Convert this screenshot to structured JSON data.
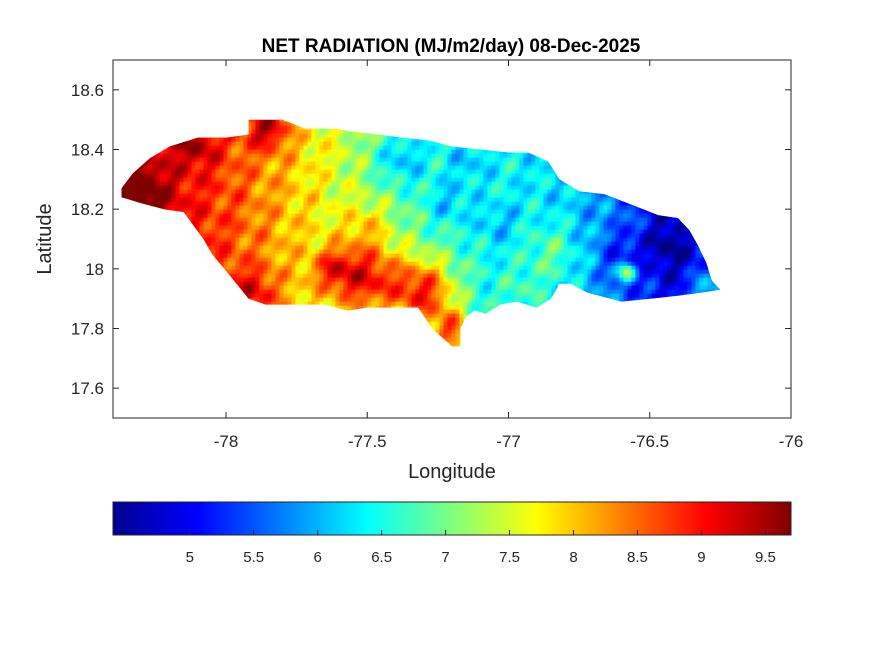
{
  "chart_data": {
    "type": "heatmap",
    "title": "NET RADIATION (MJ/m2/day) 08-Dec-2025",
    "xlabel": "Longitude",
    "ylabel": "Latitude",
    "xlim": [
      -78.4,
      -76
    ],
    "ylim": [
      17.5,
      18.7
    ],
    "x_ticks": [
      -78,
      -77.5,
      -77,
      -76.5,
      -76
    ],
    "y_ticks": [
      17.6,
      17.8,
      18,
      18.2,
      18.4,
      18.6
    ],
    "x_tick_labels": [
      "-78",
      "-77.5",
      "-77",
      "-76.5",
      "-76"
    ],
    "y_tick_labels": [
      "17.6",
      "17.8",
      "18",
      "18.2",
      "18.4",
      "18.6"
    ],
    "colormap": "jet",
    "colorbar": {
      "range": [
        4.4,
        9.7
      ],
      "ticks": [
        5,
        5.5,
        6,
        6.5,
        7,
        7.5,
        8,
        8.5,
        9,
        9.5
      ],
      "tick_labels": [
        "5",
        "5.5",
        "6",
        "6.5",
        "7",
        "7.5",
        "8",
        "8.5",
        "9",
        "9.5"
      ]
    },
    "region": "Jamaica",
    "outline": [
      [
        -78.37,
        18.27
      ],
      [
        -78.33,
        18.32
      ],
      [
        -78.27,
        18.37
      ],
      [
        -78.2,
        18.41
      ],
      [
        -78.1,
        18.44
      ],
      [
        -78.0,
        18.44
      ],
      [
        -77.92,
        18.45
      ],
      [
        -77.92,
        18.5
      ],
      [
        -77.8,
        18.5
      ],
      [
        -77.72,
        18.47
      ],
      [
        -77.62,
        18.47
      ],
      [
        -77.55,
        18.46
      ],
      [
        -77.46,
        18.45
      ],
      [
        -77.38,
        18.44
      ],
      [
        -77.28,
        18.43
      ],
      [
        -77.2,
        18.41
      ],
      [
        -77.1,
        18.4
      ],
      [
        -77.0,
        18.39
      ],
      [
        -76.93,
        18.39
      ],
      [
        -76.86,
        18.36
      ],
      [
        -76.82,
        18.3
      ],
      [
        -76.75,
        18.26
      ],
      [
        -76.66,
        18.25
      ],
      [
        -76.55,
        18.21
      ],
      [
        -76.47,
        18.18
      ],
      [
        -76.4,
        18.17
      ],
      [
        -76.36,
        18.13
      ],
      [
        -76.33,
        18.08
      ],
      [
        -76.3,
        18.02
      ],
      [
        -76.28,
        17.96
      ],
      [
        -76.25,
        17.93
      ],
      [
        -76.32,
        17.92
      ],
      [
        -76.4,
        17.91
      ],
      [
        -76.5,
        17.9
      ],
      [
        -76.6,
        17.89
      ],
      [
        -76.72,
        17.92
      ],
      [
        -76.78,
        17.95
      ],
      [
        -76.82,
        17.95
      ],
      [
        -76.85,
        17.9
      ],
      [
        -76.9,
        17.87
      ],
      [
        -76.97,
        17.89
      ],
      [
        -77.03,
        17.88
      ],
      [
        -77.08,
        17.85
      ],
      [
        -77.12,
        17.86
      ],
      [
        -77.15,
        17.84
      ],
      [
        -77.17,
        17.8
      ],
      [
        -77.17,
        17.74
      ],
      [
        -77.2,
        17.74
      ],
      [
        -77.27,
        17.8
      ],
      [
        -77.32,
        17.87
      ],
      [
        -77.4,
        17.87
      ],
      [
        -77.5,
        17.87
      ],
      [
        -77.57,
        17.86
      ],
      [
        -77.65,
        17.88
      ],
      [
        -77.72,
        17.88
      ],
      [
        -77.8,
        17.88
      ],
      [
        -77.86,
        17.88
      ],
      [
        -77.92,
        17.9
      ],
      [
        -77.98,
        17.97
      ],
      [
        -78.05,
        18.05
      ],
      [
        -78.08,
        18.1
      ],
      [
        -78.15,
        18.19
      ],
      [
        -78.22,
        18.2
      ],
      [
        -78.3,
        18.22
      ],
      [
        -78.37,
        18.24
      ]
    ],
    "value_field": {
      "base_lon": [
        -78.4,
        -78.0,
        -77.7,
        -77.5,
        -77.2,
        -77.0,
        -76.8,
        -76.6,
        -76.45,
        -76.25
      ],
      "base_val": [
        9.6,
        8.7,
        7.8,
        7.2,
        6.7,
        6.4,
        6.2,
        5.6,
        5.0,
        5.4
      ],
      "centers": [
        {
          "lon": -78.3,
          "lat": 18.24,
          "amp": 0.8,
          "r": 0.09
        },
        {
          "lon": -78.1,
          "lat": 18.41,
          "amp": 0.6,
          "r": 0.07
        },
        {
          "lon": -77.85,
          "lat": 18.47,
          "amp": 1.2,
          "r": 0.07
        },
        {
          "lon": -77.9,
          "lat": 17.92,
          "amp": 0.8,
          "r": 0.08
        },
        {
          "lon": -77.5,
          "lat": 17.97,
          "amp": 1.8,
          "r": 0.12
        },
        {
          "lon": -77.3,
          "lat": 17.92,
          "amp": 2.0,
          "r": 0.11
        },
        {
          "lon": -77.2,
          "lat": 17.79,
          "amp": 1.8,
          "r": 0.07
        },
        {
          "lon": -77.62,
          "lat": 18.0,
          "amp": 1.0,
          "r": 0.07
        },
        {
          "lon": -77.38,
          "lat": 18.37,
          "amp": -0.9,
          "r": 0.1
        },
        {
          "lon": -77.15,
          "lat": 18.37,
          "amp": -0.5,
          "r": 0.09
        },
        {
          "lon": -77.22,
          "lat": 18.22,
          "amp": -0.6,
          "r": 0.08
        },
        {
          "lon": -77.5,
          "lat": 18.15,
          "amp": 0.6,
          "r": 0.08
        },
        {
          "lon": -77.05,
          "lat": 18.15,
          "amp": -0.4,
          "r": 0.08
        },
        {
          "lon": -76.85,
          "lat": 18.05,
          "amp": 0.6,
          "r": 0.1
        },
        {
          "lon": -76.95,
          "lat": 17.92,
          "amp": 0.4,
          "r": 0.07
        },
        {
          "lon": -76.42,
          "lat": 18.08,
          "amp": -0.6,
          "r": 0.09
        },
        {
          "lon": -76.6,
          "lat": 18.05,
          "amp": -0.5,
          "r": 0.07
        },
        {
          "lon": -76.3,
          "lat": 17.93,
          "amp": 1.0,
          "r": 0.05
        },
        {
          "lon": -76.58,
          "lat": 17.99,
          "amp": 2.0,
          "r": 0.03
        }
      ]
    }
  }
}
